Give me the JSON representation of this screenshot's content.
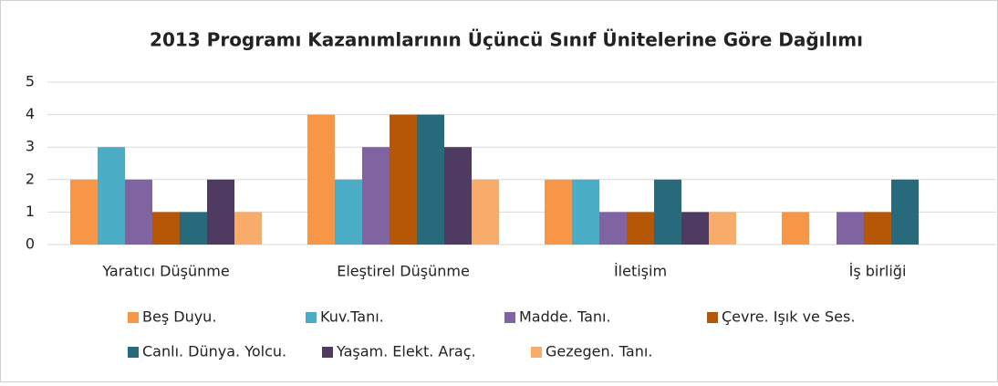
{
  "chart_data": {
    "type": "bar",
    "title": "2013 Programı Kazanımlarının Üçüncü Sınıf Ünitelerine Göre Dağılımı",
    "categories": [
      "Yaratıcı Düşünme",
      "Eleştirel Düşünme",
      "İletişim",
      "İş birliği"
    ],
    "series": [
      {
        "name": "Beş Duyu.",
        "color": "#f79646",
        "values": [
          2,
          4,
          2,
          1
        ]
      },
      {
        "name": "Kuv.Tanı.",
        "color": "#4bacc6",
        "values": [
          3,
          2,
          2,
          0
        ]
      },
      {
        "name": "Madde. Tanı.",
        "color": "#8064a2",
        "values": [
          2,
          3,
          1,
          1
        ]
      },
      {
        "name": "Çevre. Işık ve Ses.",
        "color": "#b65708",
        "values": [
          1,
          4,
          1,
          1
        ]
      },
      {
        "name": "Canlı. Dünya. Yolcu.",
        "color": "#276a7c",
        "values": [
          1,
          4,
          2,
          2
        ]
      },
      {
        "name": "Yaşam. Elekt. Araç.",
        "color": "#4f3b62",
        "values": [
          2,
          3,
          1,
          0
        ]
      },
      {
        "name": "Gezegen. Tanı.",
        "color": "#f9ab6a",
        "values": [
          1,
          2,
          1,
          0
        ]
      }
    ],
    "ylim": [
      0,
      5
    ],
    "yticks": [
      0,
      1,
      2,
      3,
      4,
      5
    ],
    "grid": true,
    "legend": "bottom"
  }
}
